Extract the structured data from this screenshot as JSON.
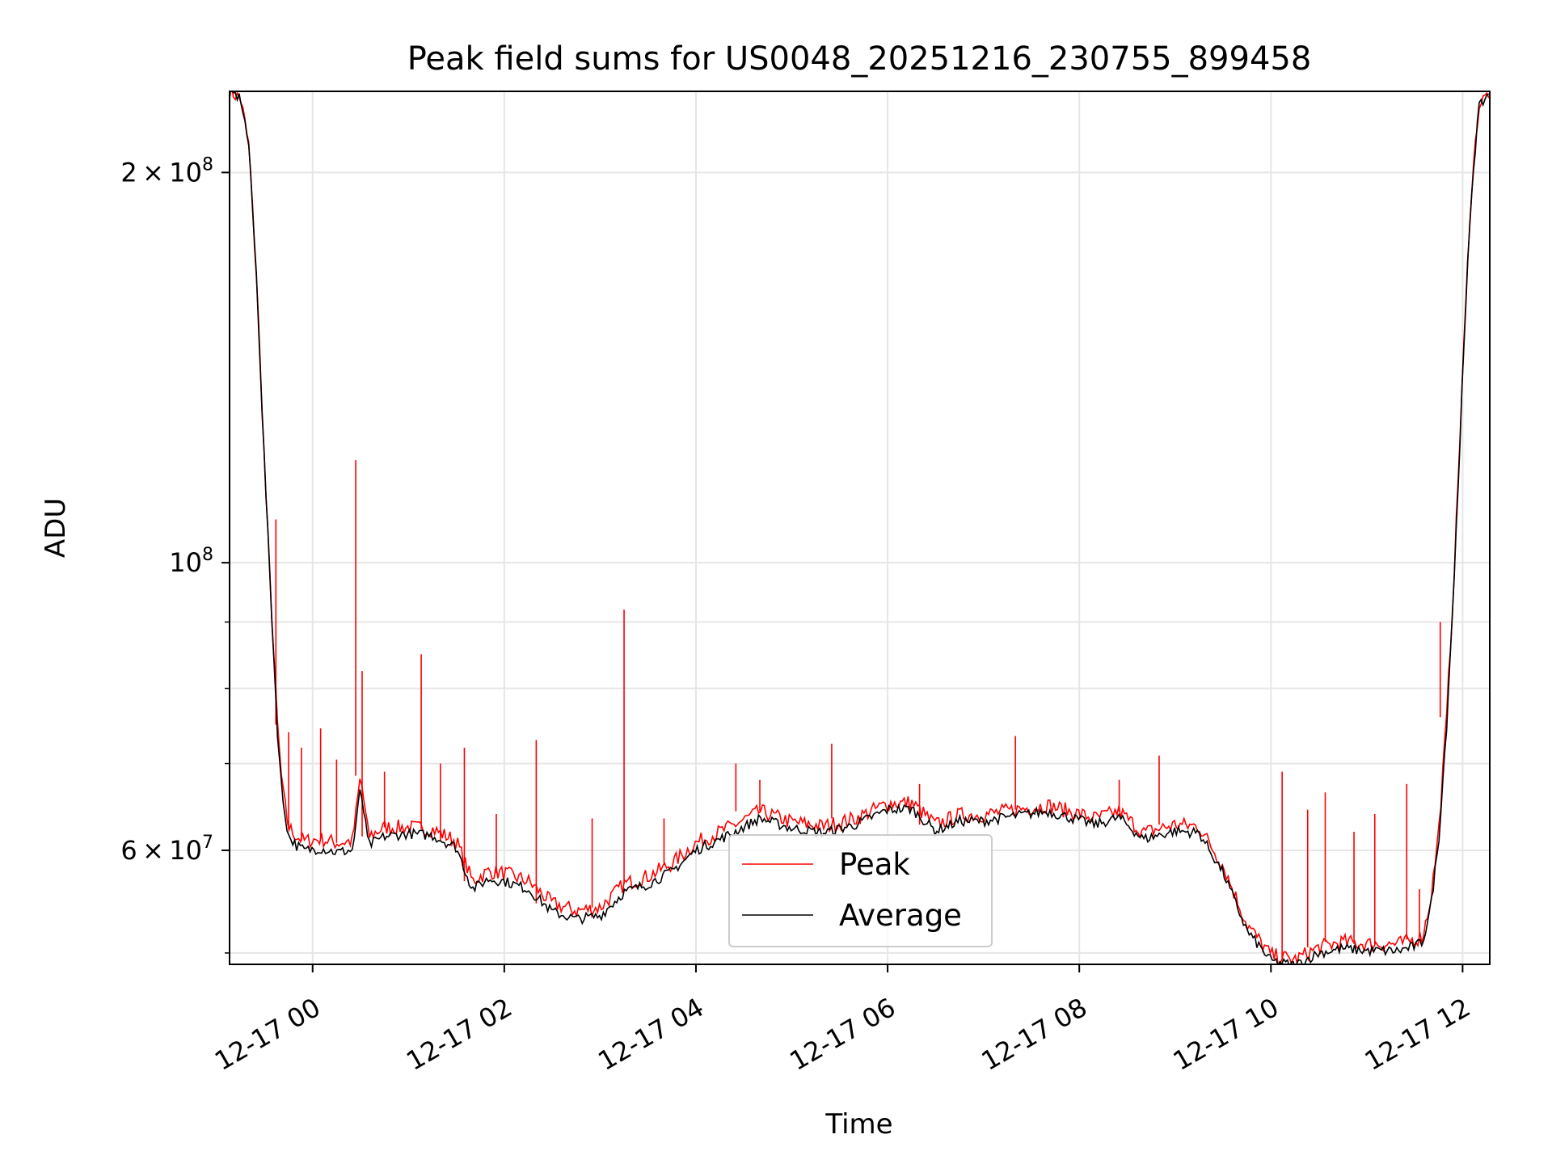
{
  "chart_data": {
    "type": "line",
    "title": "Peak field sums for US0048_20251216_230755_899458",
    "xlabel": "Time",
    "ylabel": "ADU",
    "y_scale": "log",
    "ylim": [
      49000000,
      231000000
    ],
    "xlim": [
      "2025-12-16 23:08",
      "2025-12-17 12:17"
    ],
    "x_ticks": [
      "12-17 00",
      "12-17 02",
      "12-17 04",
      "12-17 06",
      "12-17 08",
      "12-17 10",
      "12-17 12"
    ],
    "y_ticks": [
      {
        "value": 200000000,
        "mantissa": "2",
        "exp": "8"
      },
      {
        "value": 100000000,
        "mantissa": "",
        "exp": "8"
      },
      {
        "value": 60000000,
        "mantissa": "6",
        "exp": "7"
      }
    ],
    "y_minor_ticks": [
      50000000,
      70000000,
      80000000,
      90000000
    ],
    "grid": true,
    "legend_position": "lower-center",
    "colors": {
      "peak": "#ff0000",
      "average": "#000000",
      "grid": "#e6e6e6"
    },
    "series": [
      {
        "name": "Peak",
        "x": [
          "2025-12-16 23:08",
          "2025-12-16 23:15",
          "2025-12-16 23:20",
          "2025-12-16 23:25",
          "2025-12-16 23:30",
          "2025-12-16 23:35",
          "2025-12-16 23:38",
          "2025-12-16 23:41",
          "2025-12-16 23:45",
          "2025-12-16 23:50",
          "2025-12-16 23:55",
          "2025-12-17 00:05",
          "2025-12-17 00:15",
          "2025-12-17 00:25",
          "2025-12-17 00:30",
          "2025-12-17 00:35",
          "2025-12-17 00:45",
          "2025-12-17 01:00",
          "2025-12-17 01:15",
          "2025-12-17 01:30",
          "2025-12-17 01:40",
          "2025-12-17 01:50",
          "2025-12-17 02:00",
          "2025-12-17 02:15",
          "2025-12-17 02:30",
          "2025-12-17 02:45",
          "2025-12-17 03:00",
          "2025-12-17 03:15",
          "2025-12-17 03:30",
          "2025-12-17 03:45",
          "2025-12-17 04:00",
          "2025-12-17 04:20",
          "2025-12-17 04:40",
          "2025-12-17 05:00",
          "2025-12-17 05:20",
          "2025-12-17 05:40",
          "2025-12-17 06:00",
          "2025-12-17 06:15",
          "2025-12-17 06:30",
          "2025-12-17 06:45",
          "2025-12-17 07:00",
          "2025-12-17 07:20",
          "2025-12-17 07:40",
          "2025-12-17 08:00",
          "2025-12-17 08:10",
          "2025-12-17 08:25",
          "2025-12-17 08:40",
          "2025-12-17 09:00",
          "2025-12-17 09:15",
          "2025-12-17 09:30",
          "2025-12-17 09:45",
          "2025-12-17 10:00",
          "2025-12-17 10:15",
          "2025-12-17 10:30",
          "2025-12-17 10:45",
          "2025-12-17 11:00",
          "2025-12-17 11:20",
          "2025-12-17 11:30",
          "2025-12-17 11:35",
          "2025-12-17 11:40",
          "2025-12-17 11:45",
          "2025-12-17 11:50",
          "2025-12-17 11:55",
          "2025-12-17 12:00",
          "2025-12-17 12:05",
          "2025-12-17 12:10",
          "2025-12-17 12:17"
        ],
        "y": [
          231000000,
          228000000,
          210000000,
          165000000,
          118000000,
          88000000,
          75000000,
          67000000,
          62500000,
          61500000,
          61000000,
          61200000,
          60800000,
          61000000,
          68500000,
          61500000,
          62500000,
          62500000,
          62300000,
          61000000,
          56800000,
          57800000,
          57600000,
          56800000,
          54600000,
          53900000,
          54200000,
          56500000,
          57300000,
          58600000,
          60800000,
          62400000,
          64300000,
          63100000,
          62600000,
          63500000,
          65200000,
          65300000,
          62800000,
          63900000,
          63900000,
          64500000,
          65000000,
          64000000,
          63500000,
          64300000,
          61900000,
          62800000,
          62600000,
          58400000,
          52600000,
          49800000,
          49400000,
          50500000,
          51000000,
          50800000,
          50800000,
          51200000,
          51500000,
          55000000,
          62000000,
          76000000,
          100000000,
          140000000,
          190000000,
          225000000,
          231000000
        ],
        "spikes": [
          {
            "x": "2025-12-16 23:37",
            "y": 108000000
          },
          {
            "x": "2025-12-16 23:45",
            "y": 74000000
          },
          {
            "x": "2025-12-16 23:53",
            "y": 72000000
          },
          {
            "x": "2025-12-17 00:05",
            "y": 74500000
          },
          {
            "x": "2025-12-17 00:15",
            "y": 70500000
          },
          {
            "x": "2025-12-17 00:27",
            "y": 120000000
          },
          {
            "x": "2025-12-17 00:31",
            "y": 82500000
          },
          {
            "x": "2025-12-17 00:45",
            "y": 69000000
          },
          {
            "x": "2025-12-17 01:08",
            "y": 85000000
          },
          {
            "x": "2025-12-17 01:20",
            "y": 70000000
          },
          {
            "x": "2025-12-17 01:35",
            "y": 72000000
          },
          {
            "x": "2025-12-17 01:55",
            "y": 64000000
          },
          {
            "x": "2025-12-17 02:20",
            "y": 73000000
          },
          {
            "x": "2025-12-17 02:55",
            "y": 63500000
          },
          {
            "x": "2025-12-17 03:15",
            "y": 92000000
          },
          {
            "x": "2025-12-17 03:40",
            "y": 63500000
          },
          {
            "x": "2025-12-17 04:25",
            "y": 70000000
          },
          {
            "x": "2025-12-17 04:40",
            "y": 68000000
          },
          {
            "x": "2025-12-17 05:25",
            "y": 72500000
          },
          {
            "x": "2025-12-17 06:20",
            "y": 67500000
          },
          {
            "x": "2025-12-17 07:20",
            "y": 73500000
          },
          {
            "x": "2025-12-17 08:25",
            "y": 68000000
          },
          {
            "x": "2025-12-17 08:50",
            "y": 71000000
          },
          {
            "x": "2025-12-17 10:07",
            "y": 69000000
          },
          {
            "x": "2025-12-17 10:23",
            "y": 64500000
          },
          {
            "x": "2025-12-17 10:34",
            "y": 66500000
          },
          {
            "x": "2025-12-17 10:52",
            "y": 62000000
          },
          {
            "x": "2025-12-17 11:05",
            "y": 64000000
          },
          {
            "x": "2025-12-17 11:25",
            "y": 67500000
          },
          {
            "x": "2025-12-17 11:33",
            "y": 56000000
          },
          {
            "x": "2025-12-17 11:46",
            "y": 90000000
          }
        ]
      },
      {
        "name": "Average",
        "x": [
          "2025-12-16 23:08",
          "2025-12-16 23:15",
          "2025-12-16 23:20",
          "2025-12-16 23:25",
          "2025-12-16 23:30",
          "2025-12-16 23:35",
          "2025-12-16 23:38",
          "2025-12-16 23:41",
          "2025-12-16 23:45",
          "2025-12-16 23:50",
          "2025-12-16 23:55",
          "2025-12-17 00:05",
          "2025-12-17 00:15",
          "2025-12-17 00:25",
          "2025-12-17 00:30",
          "2025-12-17 00:35",
          "2025-12-17 00:45",
          "2025-12-17 01:00",
          "2025-12-17 01:15",
          "2025-12-17 01:30",
          "2025-12-17 01:40",
          "2025-12-17 01:50",
          "2025-12-17 02:00",
          "2025-12-17 02:15",
          "2025-12-17 02:30",
          "2025-12-17 02:45",
          "2025-12-17 03:00",
          "2025-12-17 03:15",
          "2025-12-17 03:30",
          "2025-12-17 03:45",
          "2025-12-17 04:00",
          "2025-12-17 04:20",
          "2025-12-17 04:40",
          "2025-12-17 05:00",
          "2025-12-17 05:20",
          "2025-12-17 05:40",
          "2025-12-17 06:00",
          "2025-12-17 06:15",
          "2025-12-17 06:30",
          "2025-12-17 06:45",
          "2025-12-17 07:00",
          "2025-12-17 07:20",
          "2025-12-17 07:40",
          "2025-12-17 08:00",
          "2025-12-17 08:10",
          "2025-12-17 08:25",
          "2025-12-17 08:40",
          "2025-12-17 09:00",
          "2025-12-17 09:15",
          "2025-12-17 09:30",
          "2025-12-17 09:45",
          "2025-12-17 10:00",
          "2025-12-17 10:15",
          "2025-12-17 10:30",
          "2025-12-17 10:45",
          "2025-12-17 11:00",
          "2025-12-17 11:20",
          "2025-12-17 11:30",
          "2025-12-17 11:35",
          "2025-12-17 11:40",
          "2025-12-17 11:45",
          "2025-12-17 11:50",
          "2025-12-17 11:55",
          "2025-12-17 12:00",
          "2025-12-17 12:05",
          "2025-12-17 12:10",
          "2025-12-17 12:17"
        ],
        "y": [
          231000000,
          228000000,
          210000000,
          165000000,
          118000000,
          88000000,
          74000000,
          66000000,
          61500000,
          60500000,
          60000000,
          60200000,
          59800000,
          60000000,
          67000000,
          60500000,
          61500000,
          61800000,
          61600000,
          60300000,
          56000000,
          57000000,
          56800000,
          56000000,
          53800000,
          53100000,
          53400000,
          55700000,
          56500000,
          57800000,
          60000000,
          61600000,
          63500000,
          62400000,
          61900000,
          62800000,
          64500000,
          64600000,
          62100000,
          63200000,
          63200000,
          63800000,
          64300000,
          63300000,
          62800000,
          63600000,
          61200000,
          62100000,
          61900000,
          57700000,
          52000000,
          49300000,
          48900000,
          50000000,
          50400000,
          50200000,
          50200000,
          50600000,
          51000000,
          54200000,
          61000000,
          75000000,
          99000000,
          139000000,
          189000000,
          224000000,
          231000000
        ]
      }
    ]
  }
}
